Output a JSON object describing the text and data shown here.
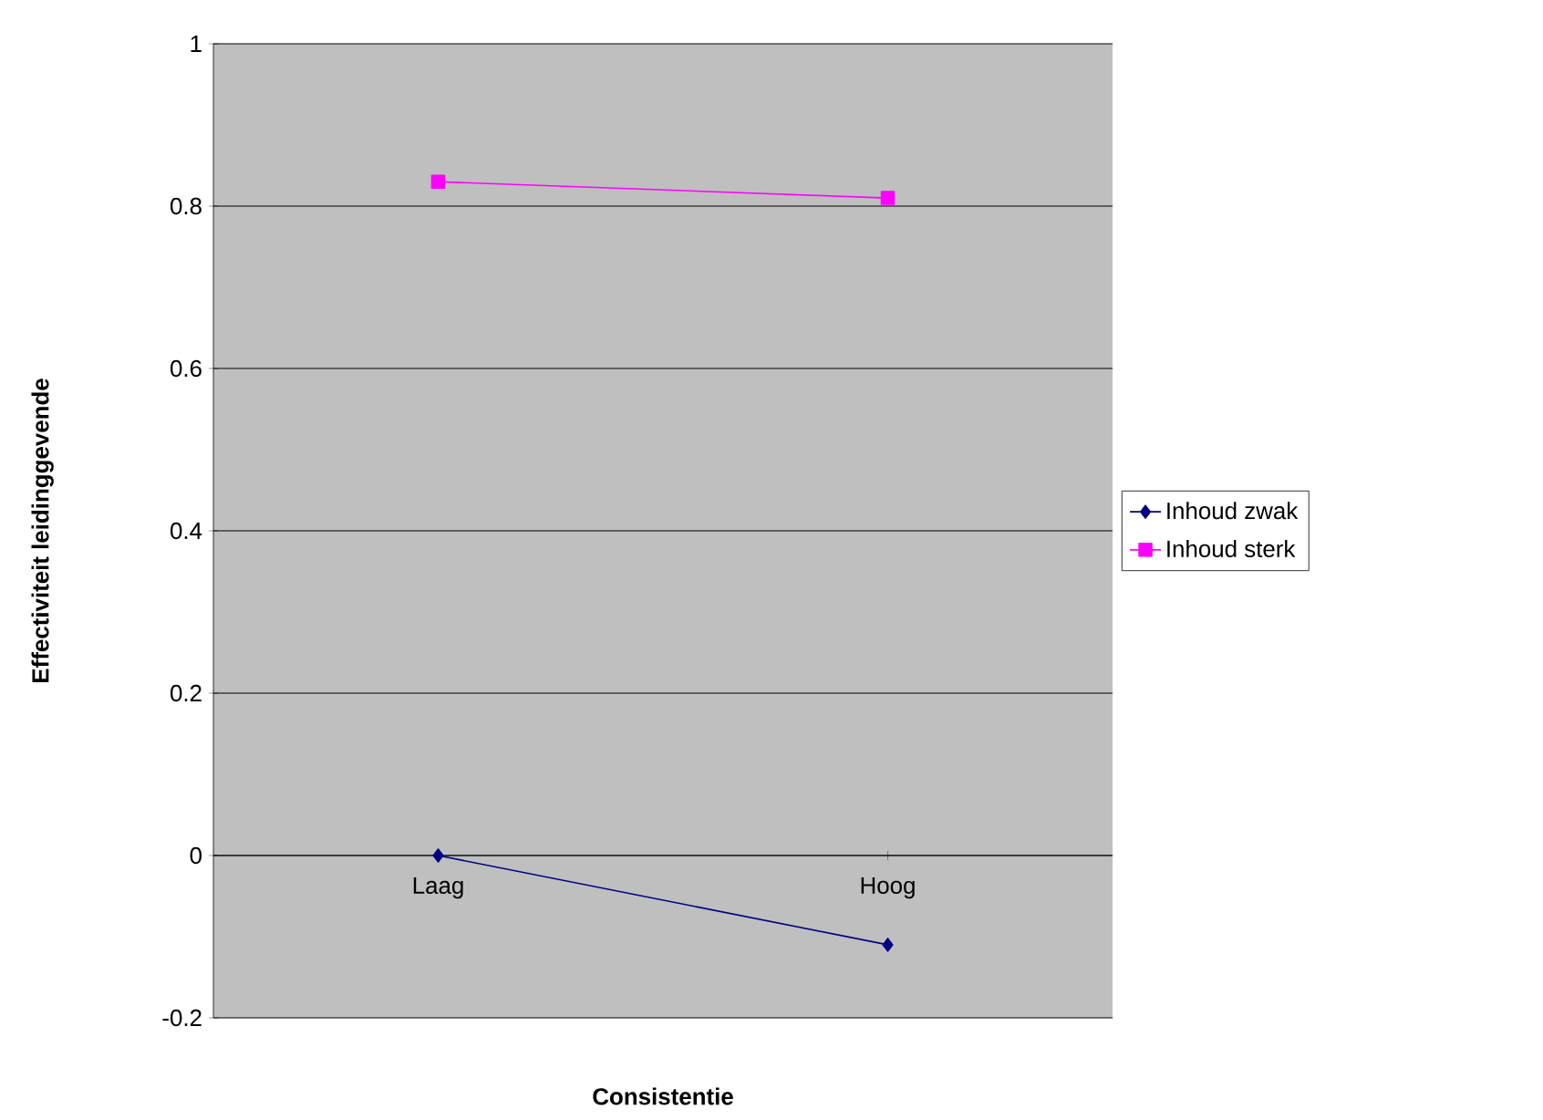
{
  "chart_data": {
    "type": "line",
    "xlabel": "Consistentie",
    "ylabel": "Effectiviteit leidinggevende",
    "categories": [
      "Laag",
      "Hoog"
    ],
    "series": [
      {
        "name": "Inhoud zwak",
        "color": "#000080",
        "marker": "diamond",
        "values": [
          0,
          -0.11
        ]
      },
      {
        "name": "Inhoud sterk",
        "color": "#ff00ff",
        "marker": "square",
        "values": [
          0.83,
          0.81
        ]
      }
    ],
    "ylim": [
      -0.2,
      1
    ],
    "yticks": [
      -0.2,
      0,
      0.2,
      0.4,
      0.6,
      0.8,
      1
    ],
    "grid": "y",
    "legend": "right"
  }
}
